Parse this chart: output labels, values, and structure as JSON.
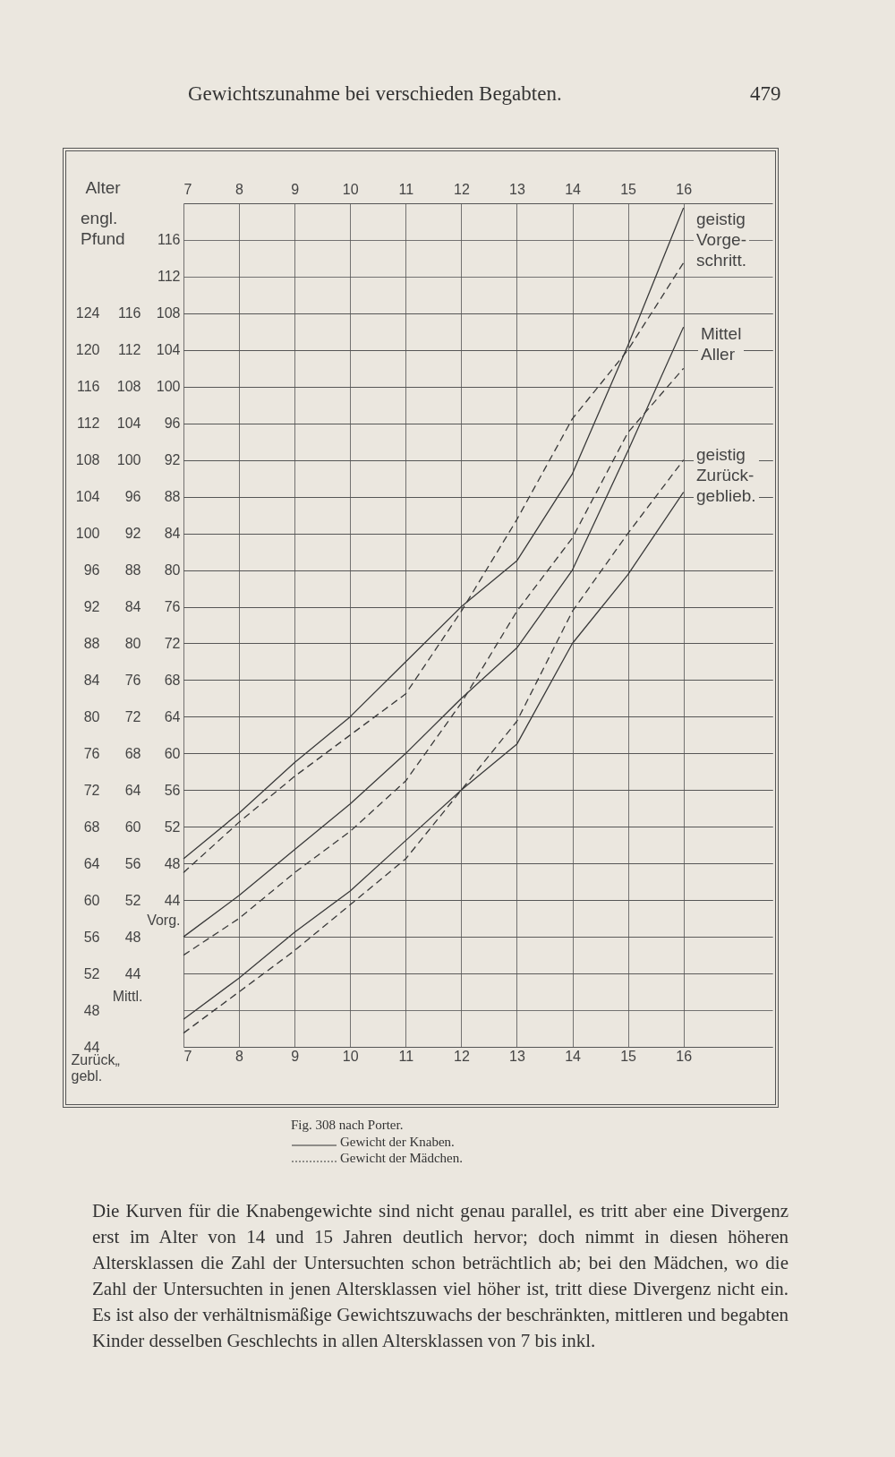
{
  "chart_data": {
    "type": "line",
    "title": "Gewichtszunahme bei verschieden Begabten.",
    "x2label": "Alter",
    "ylabel": "Vorg.",
    "y2label": "Mittl.",
    "y3label": "Zurück„\ngebl.",
    "x": [
      7,
      8,
      9,
      10,
      11,
      12,
      13,
      14,
      15,
      16
    ],
    "xlim": [
      7,
      17.6
    ],
    "xticks": [
      7,
      8,
      9,
      10,
      11,
      12,
      13,
      14,
      15,
      16
    ],
    "x2lim": [
      7,
      17.6
    ],
    "x2ticks": [
      7,
      8,
      9,
      10,
      11,
      12,
      13,
      14,
      15,
      16
    ],
    "ylim": [
      28,
      120
    ],
    "yticks": [
      44,
      48,
      52,
      56,
      60,
      64,
      68,
      72,
      76,
      80,
      84,
      88,
      92,
      96,
      100,
      104,
      108,
      112,
      116
    ],
    "y2lim": [
      36,
      128
    ],
    "y2ticks": [
      44,
      48,
      52,
      56,
      60,
      64,
      68,
      72,
      76,
      80,
      84,
      88,
      92,
      96,
      100,
      104,
      108,
      112,
      116
    ],
    "y3lim": [
      44,
      136
    ],
    "y3ticks": [
      44,
      48,
      52,
      56,
      60,
      64,
      68,
      72,
      76,
      80,
      84,
      88,
      92,
      96,
      100,
      104,
      108,
      112,
      116,
      120,
      124
    ],
    "grid": true,
    "series": [
      {
        "color": "#3a3a3a",
        "line_style": "solid",
        "axis": "y",
        "values": [
          48.5,
          53.5,
          59,
          64,
          70,
          76,
          81,
          90.5,
          104.5,
          119.5
        ]
      },
      {
        "color": "#3a3a3a",
        "line_style": "dashed",
        "axis": "y",
        "values": [
          47,
          52.5,
          57.5,
          62,
          66.5,
          75.5,
          85.5,
          96.5,
          104,
          113.5
        ]
      },
      {
        "color": "#3a3a3a",
        "line_style": "solid",
        "axis": "y2",
        "values": [
          48,
          52.5,
          57.5,
          62.5,
          68,
          74,
          79.5,
          88,
          101,
          114.5
        ]
      },
      {
        "color": "#3a3a3a",
        "line_style": "dashed",
        "axis": "y2",
        "values": [
          46,
          50,
          55,
          59.5,
          65,
          73.5,
          83.5,
          91.5,
          103,
          110
        ]
      },
      {
        "color": "#3a3a3a",
        "line_style": "solid",
        "axis": "y3",
        "values": [
          47,
          51.5,
          56.5,
          61,
          66.5,
          72,
          77,
          88,
          95.5,
          104.5
        ]
      },
      {
        "color": "#3a3a3a",
        "line_style": "dashed",
        "axis": "y3",
        "values": [
          45.5,
          50,
          54.5,
          59.5,
          64.5,
          72,
          79.5,
          91.5,
          100,
          108
        ]
      }
    ],
    "annotations": [
      "479",
      "engl.\nPfund",
      "geistig\nVorge-\nschritt.",
      "Mittel\nAller",
      "geistig\nZurück-\ngeblieb.",
      "Fig. 308 nach Porter.",
      "Gewicht der Knaben.",
      "Gewicht der Mädchen.",
      "Die Kurven für die Knabengewichte sind nicht genau parallel, es tritt aber eine Divergenz erst im Alter von 14 und 15 Jahren deutlich hervor; doch nimmt in diesen höheren Altersklassen die Zahl der Untersuchten schon beträchtlich ab; bei den Mädchen, wo die Zahl der Untersuchten in jenen Altersklassen viel höher ist, tritt diese Divergenz nicht ein. Es ist also der verhältnismäßige Gewichtszuwachs der beschränkten, mittleren und begabten Kinder desselben Geschlechts in allen Altersklassen von 7 bis inkl."
    ]
  }
}
